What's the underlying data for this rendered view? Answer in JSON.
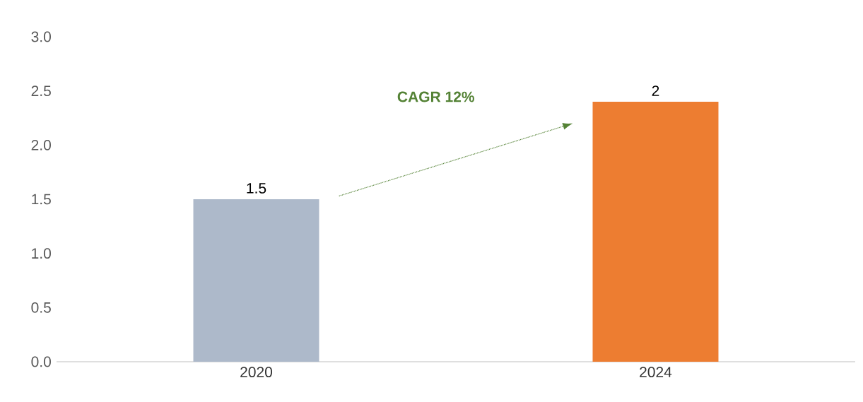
{
  "chart_data": {
    "type": "bar",
    "categories": [
      "2020",
      "2024"
    ],
    "values": [
      1.5,
      2.4
    ],
    "value_labels": [
      "1.5",
      "2"
    ],
    "colors": [
      "#adb9ca",
      "#ed7d31"
    ],
    "ylim": [
      0,
      3
    ],
    "yticks": [
      {
        "value": 0,
        "label": "0.0"
      },
      {
        "value": 0.5,
        "label": "0.5"
      },
      {
        "value": 1,
        "label": "1.0"
      },
      {
        "value": 1.5,
        "label": "1.5"
      },
      {
        "value": 2,
        "label": "2.0"
      },
      {
        "value": 2.5,
        "label": "2.5"
      },
      {
        "value": 3,
        "label": "3.0"
      }
    ],
    "annotations": [
      "CAGR  12%"
    ],
    "grid": false
  }
}
